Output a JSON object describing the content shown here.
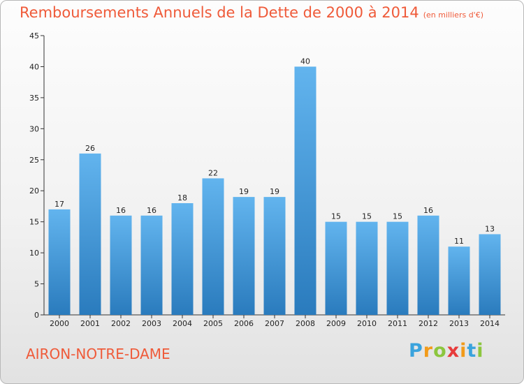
{
  "header": {
    "title": "Remboursements Annuels de la Dette de 2000 à 2014",
    "unit": "(en milliers d'€)"
  },
  "footer": {
    "commune": "AIRON-NOTRE-DAME",
    "brand": {
      "letters": [
        "P",
        "r",
        "o",
        "x",
        "i",
        "t",
        "i"
      ],
      "colors": [
        "#3aa3dd",
        "#f29b1a",
        "#8cc63e",
        "#e73b3b",
        "#f29b1a",
        "#3aa3dd",
        "#8cc63e"
      ]
    }
  },
  "chart_data": {
    "type": "bar",
    "title": "Remboursements Annuels de la Dette de 2000 à 2014",
    "xlabel": "",
    "ylabel": "",
    "categories": [
      "2000",
      "2001",
      "2002",
      "2003",
      "2004",
      "2005",
      "2006",
      "2007",
      "2008",
      "2009",
      "2010",
      "2011",
      "2012",
      "2013",
      "2014"
    ],
    "values": [
      17,
      26,
      16,
      16,
      18,
      22,
      19,
      19,
      40,
      15,
      15,
      15,
      16,
      11,
      13
    ],
    "ylim": [
      0,
      45
    ],
    "yticks": [
      0,
      5,
      10,
      15,
      20,
      25,
      30,
      35,
      40,
      45
    ],
    "grid": false,
    "bar_color": "#4fa3df",
    "bar_color_light": "#62b4ee",
    "bar_color_dark": "#2a7bbd"
  }
}
